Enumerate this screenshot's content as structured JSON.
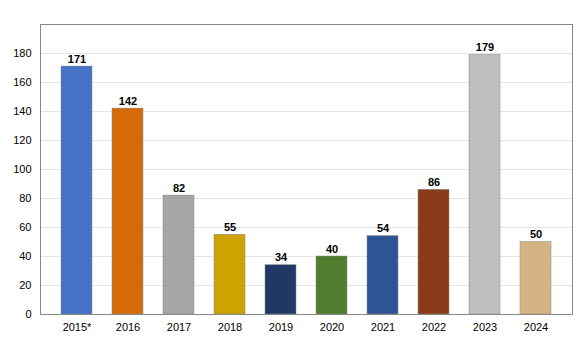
{
  "chart_data": {
    "type": "bar",
    "categories": [
      "2015*",
      "2016",
      "2017",
      "2018",
      "2019",
      "2020",
      "2021",
      "2022",
      "2023",
      "2024"
    ],
    "values": [
      171,
      142,
      82,
      55,
      34,
      40,
      54,
      86,
      179,
      50
    ],
    "colors": [
      "#4472C4",
      "#D46B08",
      "#A6A6A6",
      "#CCA300",
      "#203864",
      "#4E7E2E",
      "#2F5496",
      "#8B3A1A",
      "#BFBFBF",
      "#D4B483"
    ],
    "ylim": [
      0,
      200
    ],
    "yticks": [
      0,
      20,
      40,
      60,
      80,
      100,
      120,
      140,
      160,
      180
    ],
    "grid": true,
    "data_labels": true
  }
}
